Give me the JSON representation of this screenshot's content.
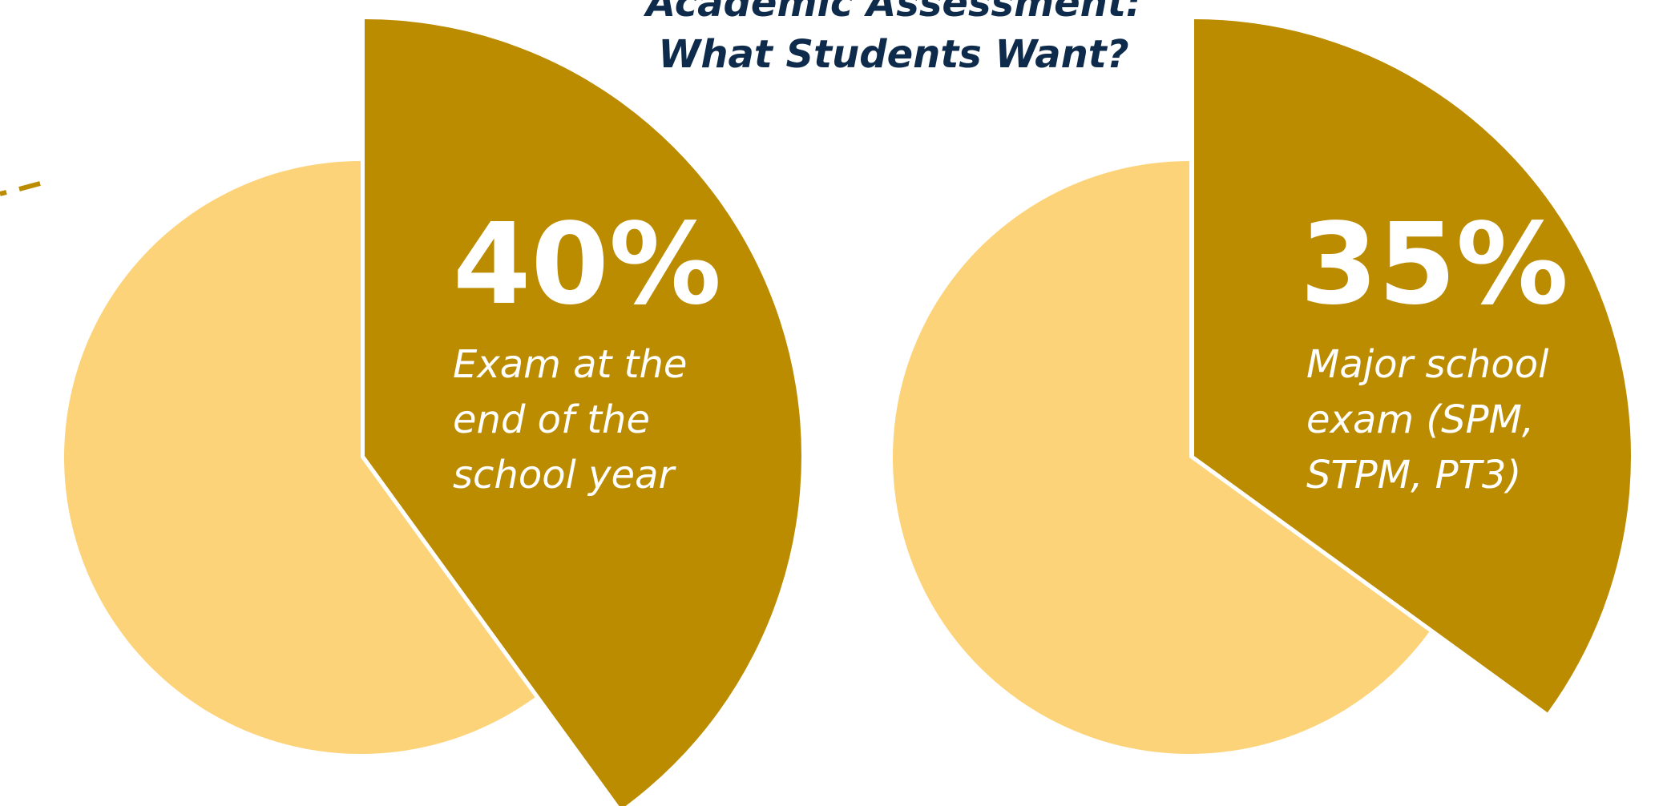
{
  "chart_data": [
    {
      "type": "pie",
      "title": [
        "Academic Assessment:",
        "What Students Want?"
      ],
      "slices": [
        {
          "value": 40,
          "label": "40%",
          "description": [
            "Exam at the",
            "end of the",
            "school year"
          ],
          "color": "#bb8b00",
          "exploded": true
        },
        {
          "value": 60,
          "color": "#fcd378"
        }
      ]
    },
    {
      "type": "pie",
      "slices": [
        {
          "value": 35,
          "label": "35%",
          "description": [
            "Major school",
            "exam (SPM,",
            "STPM, PT3)"
          ],
          "color": "#bb8b00",
          "exploded": true
        },
        {
          "value": 65,
          "color": "#fcd378"
        }
      ]
    }
  ],
  "colors": {
    "highlight": "#bb8b00",
    "remainder": "#fcd378",
    "title": "#0f2b4c"
  }
}
